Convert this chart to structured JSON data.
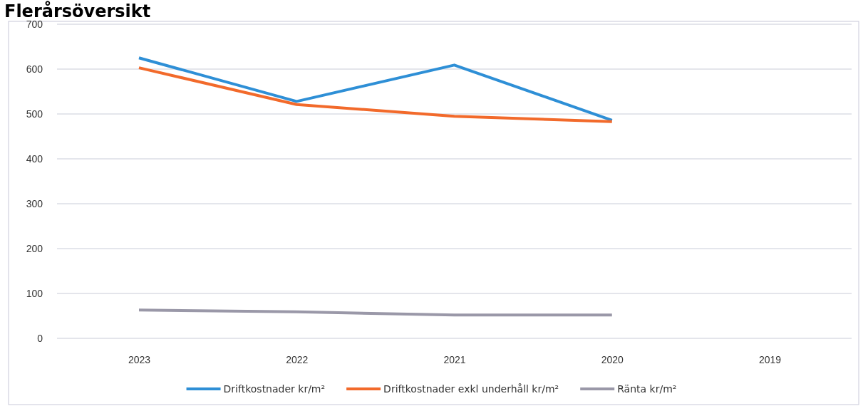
{
  "chart_data": {
    "type": "line",
    "title": "Flerårsöversikt",
    "categories": [
      "2023",
      "2022",
      "2021",
      "2020",
      "2019"
    ],
    "series": [
      {
        "name": "Driftkostnader kr/m²",
        "color": "#2e8fd6",
        "values": [
          625,
          528,
          609,
          486,
          null
        ]
      },
      {
        "name": "Driftkostnader exkl underhåll kr/m²",
        "color": "#f26a2b",
        "values": [
          603,
          521,
          495,
          483,
          null
        ]
      },
      {
        "name": "Ränta kr/m²",
        "color": "#9a98a8",
        "values": [
          63,
          59,
          52,
          52,
          null
        ]
      }
    ],
    "ylim": [
      0,
      700
    ],
    "yticks": [
      0,
      100,
      200,
      300,
      400,
      500,
      600,
      700
    ],
    "grid": "y",
    "legend": "bottom",
    "marker": "none",
    "line_style": "solid"
  }
}
